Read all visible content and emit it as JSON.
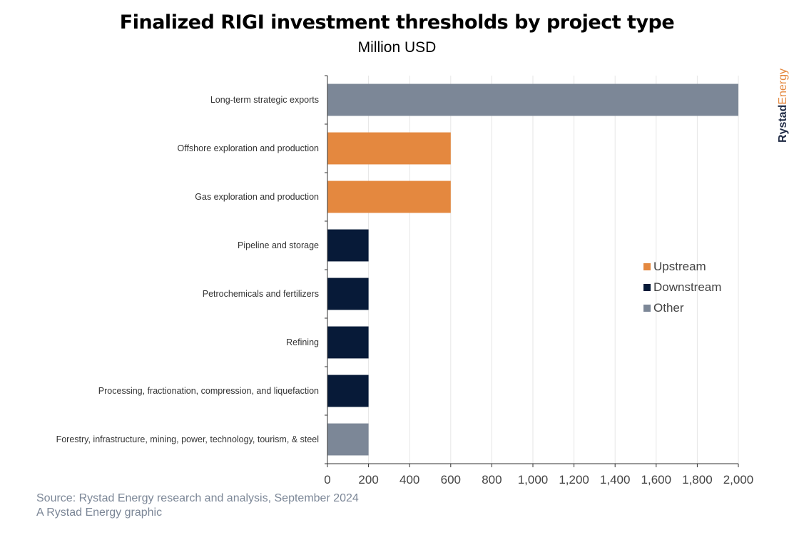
{
  "title": "Finalized RIGI investment thresholds by project type",
  "subtitle": "Million USD",
  "brand": {
    "part1": "Rystad",
    "part2": "Energy",
    "color1": "#1f2a44",
    "color2": "#e4883f"
  },
  "source": {
    "line1": "Source: Rystad Energy research and analysis, September 2024",
    "line2": "A Rystad Energy graphic"
  },
  "colors": {
    "Upstream": "#e4883f",
    "Downstream": "#071a38",
    "Other": "#7c8797"
  },
  "legend": [
    {
      "name": "Upstream",
      "color": "#e4883f"
    },
    {
      "name": "Downstream",
      "color": "#071a38"
    },
    {
      "name": "Other",
      "color": "#7c8797"
    }
  ],
  "chart_data": {
    "type": "bar",
    "orientation": "horizontal",
    "categories": [
      "Long-term strategic exports",
      "Offshore exploration and production",
      "Gas exploration and production",
      "Pipeline and storage",
      "Petrochemicals and fertilizers",
      "Refining",
      "Processing, fractionation, compression, and liquefaction",
      "Forestry, infrastructure, mining, power, technology, tourism, & steel"
    ],
    "values": [
      2000,
      600,
      600,
      200,
      200,
      200,
      200,
      200
    ],
    "groups": [
      "Other",
      "Upstream",
      "Upstream",
      "Downstream",
      "Downstream",
      "Downstream",
      "Downstream",
      "Other"
    ],
    "xlim": [
      0,
      2000
    ],
    "xticks": [
      0,
      200,
      400,
      600,
      800,
      1000,
      1200,
      1400,
      1600,
      1800,
      2000
    ],
    "xtick_labels": [
      "0",
      "200",
      "400",
      "600",
      "800",
      "1,000",
      "1,200",
      "1,400",
      "1,600",
      "1,800",
      "2,000"
    ],
    "grid": "vertical",
    "legend_position": "right"
  }
}
